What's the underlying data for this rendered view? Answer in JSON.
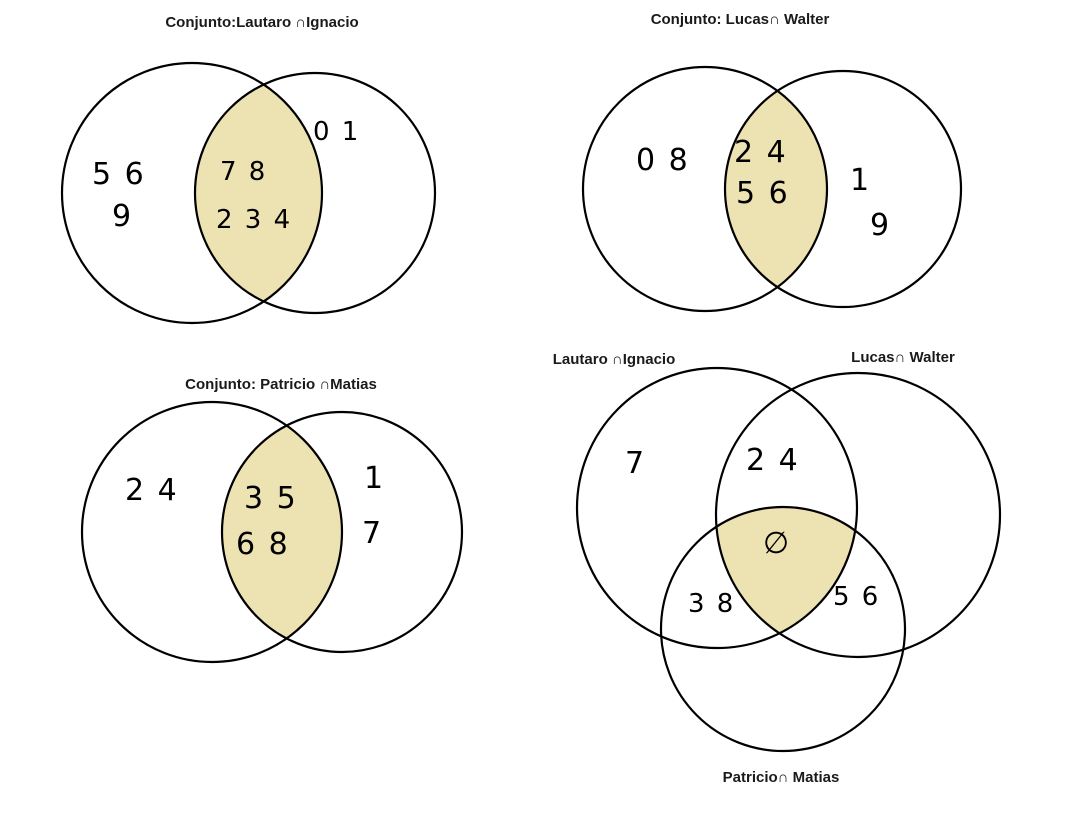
{
  "colors": {
    "highlight": "#EDE2B2",
    "stroke": "#000000",
    "text": "#1a1a1a"
  },
  "diagrams": {
    "top_left": {
      "title": "Conjunto:Lautaro ∩Ignacio",
      "left_only": [
        "5 6",
        "9"
      ],
      "intersection": [
        "7 8",
        "2 3 4"
      ],
      "right_only": [
        "0 1"
      ]
    },
    "top_right": {
      "title": "Conjunto: Lucas∩ Walter",
      "left_only": [
        "0 8"
      ],
      "intersection": [
        "2 4",
        "5 6"
      ],
      "right_only": [
        "1",
        "9"
      ]
    },
    "bottom_left": {
      "title": "Conjunto: Patricio ∩Matias",
      "left_only": [
        "2 4"
      ],
      "intersection": [
        "3 5",
        "6 8"
      ],
      "right_only": [
        "1",
        "7"
      ]
    },
    "bottom_right": {
      "label_a": "Lautaro ∩Ignacio",
      "label_b": "Lucas∩ Walter",
      "label_c": "Patricio∩ Matias",
      "a_only": "7",
      "ab": "2 4",
      "abc": "∅",
      "ac": "3 8",
      "bc": "5 6"
    }
  }
}
